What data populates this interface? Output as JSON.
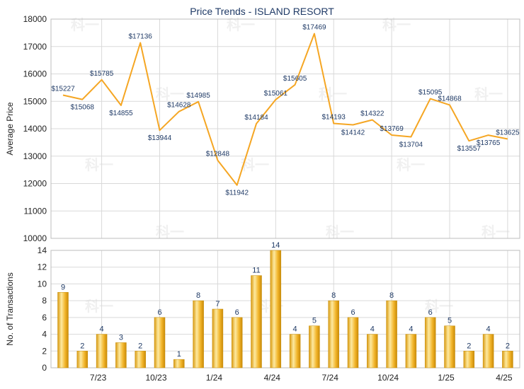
{
  "chart_data": [
    {
      "type": "line",
      "title": "Price Trends - ISLAND RESORT",
      "ylabel": "Average Price",
      "ylim": [
        10000,
        18000
      ],
      "yticks": [
        10000,
        11000,
        12000,
        13000,
        14000,
        15000,
        16000,
        17000,
        18000
      ],
      "grid": true,
      "line_color": "#f5a623",
      "series": [
        {
          "values": [
            15227,
            15068,
            15785,
            14855,
            17136,
            13944,
            14628,
            14985,
            12848,
            11942,
            14184,
            15061,
            15605,
            17469,
            14193,
            14142,
            14322,
            13769,
            13704,
            15095,
            14868,
            13557,
            13765,
            13625
          ],
          "labels": [
            "$15227",
            "$15068",
            "$15785",
            "$14855",
            "$17136",
            "$13944",
            "$14628",
            "$14985",
            "$12848",
            "$11942",
            "$14184",
            "$15061",
            "$15605",
            "$17469",
            "$14193",
            "$14142",
            "$14322",
            "$13769",
            "$13704",
            "$15095",
            "$14868",
            "$13557",
            "$13765",
            "$13625"
          ]
        }
      ]
    },
    {
      "type": "bar",
      "ylabel": "No. of Transactions",
      "ylim": [
        0,
        14
      ],
      "yticks": [
        0,
        2,
        4,
        6,
        8,
        10,
        12,
        14
      ],
      "grid": true,
      "bar_color": "#f0b020",
      "x_tick_labels": [
        "7/23",
        "10/23",
        "1/24",
        "4/24",
        "7/24",
        "10/24",
        "1/25",
        "4/25"
      ],
      "values": [
        9,
        2,
        4,
        3,
        2,
        6,
        1,
        8,
        7,
        6,
        11,
        14,
        4,
        5,
        8,
        6,
        4,
        8,
        4,
        6,
        5,
        2,
        4,
        2
      ],
      "labels": [
        "9",
        "2",
        "4",
        "3",
        "2",
        "6",
        "1",
        "8",
        "7",
        "6",
        "11",
        "14",
        "4",
        "5",
        "8",
        "6",
        "4",
        "8",
        "4",
        "6",
        "5",
        "2",
        "4",
        "2"
      ]
    }
  ],
  "watermark": "科一"
}
